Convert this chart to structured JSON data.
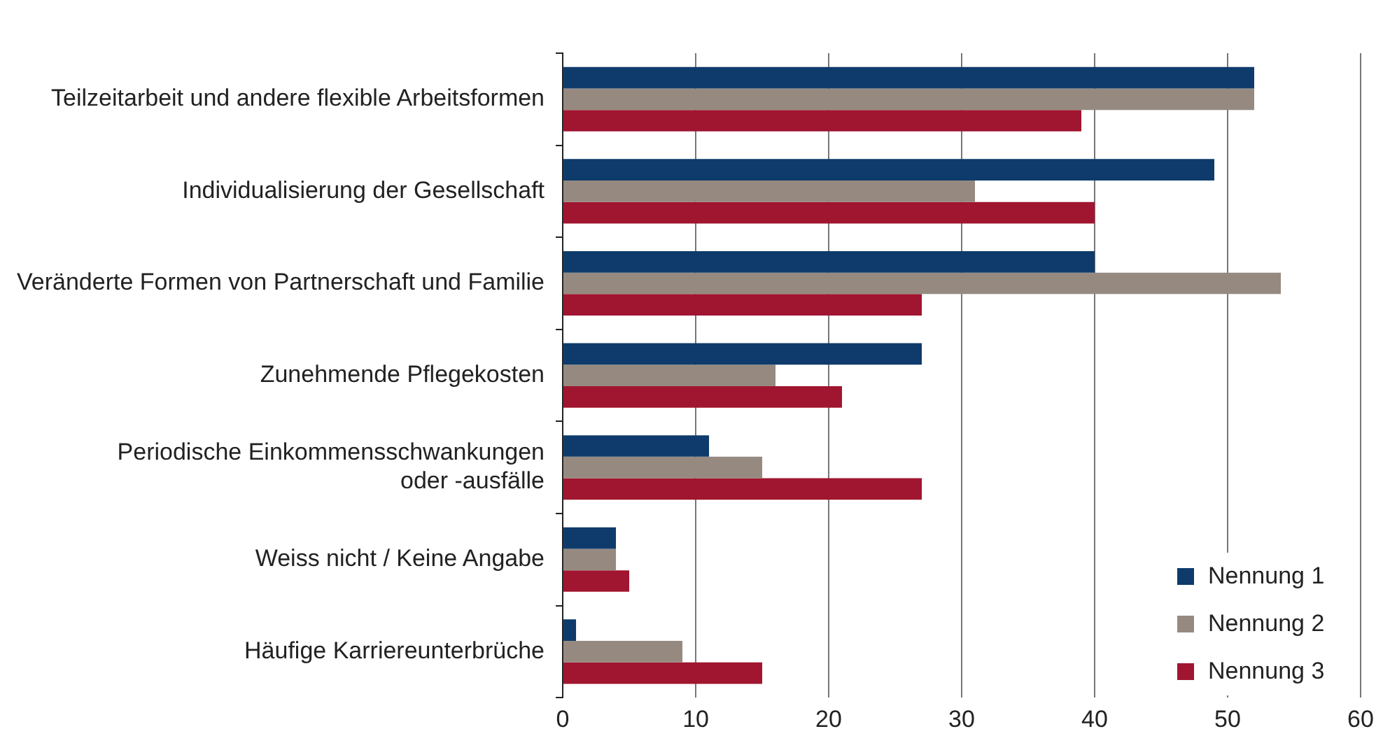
{
  "chart_data": {
    "type": "bar",
    "orientation": "horizontal",
    "categories": [
      "Teilzeitarbeit und andere flexible Arbeitsformen",
      "Individualisierung der Gesellschaft",
      "Veränderte Formen von Partnerschaft und Familie",
      "Zunehmende Pflegekosten",
      "Periodische Einkommensschwankungen\noder -ausfälle",
      "Weiss nicht / Keine Angabe",
      "Häufige Karriereunterbrüche"
    ],
    "series": [
      {
        "name": "Nennung 1",
        "color": "#0e3b6b",
        "values": [
          52,
          49,
          40,
          27,
          11,
          4,
          1
        ]
      },
      {
        "name": "Nennung 2",
        "color": "#968a80",
        "values": [
          52,
          31,
          54,
          16,
          15,
          4,
          9
        ]
      },
      {
        "name": "Nennung 3",
        "color": "#a0152f",
        "values": [
          39,
          40,
          27,
          21,
          27,
          5,
          15
        ]
      }
    ],
    "xlim": [
      0,
      60
    ],
    "xticks": [
      0,
      10,
      20,
      30,
      40,
      50,
      60
    ],
    "grid": "x",
    "legend": "bottom right"
  }
}
